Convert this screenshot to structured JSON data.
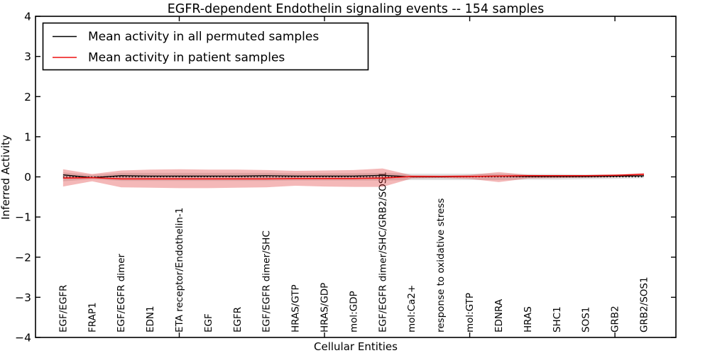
{
  "figure": {
    "title": "EGFR-dependent Endothelin signaling events -- 154 samples",
    "xlabel": "Cellular Entities",
    "ylabel": "Inferred Activity"
  },
  "legend": {
    "items": [
      {
        "label": "Mean activity in all permuted samples",
        "color": "#000000"
      },
      {
        "label": "Mean activity in patient samples",
        "color": "#ee1111"
      }
    ]
  },
  "chart_data": {
    "type": "line",
    "title": "EGFR-dependent Endothelin signaling events -- 154 samples",
    "xlabel": "Cellular Entities",
    "ylabel": "Inferred Activity",
    "ylim": [
      -4,
      4
    ],
    "ytick_values": [
      -4,
      -3,
      -2,
      -1,
      0,
      1,
      2,
      3,
      4
    ],
    "ytick_labels": [
      "−4",
      "−3",
      "−2",
      "−1",
      "0",
      "1",
      "2",
      "3",
      "4"
    ],
    "xtick_indices": [
      4,
      9,
      14,
      19
    ],
    "grid": false,
    "legend_position": "upper left",
    "categories": [
      "EGF/EGFR",
      "FRAP1",
      "EGF/EGFR dimer",
      "EDN1",
      "ETA receptor/Endothelin-1",
      "EGF",
      "EGFR",
      "EGF/EGFR dimer/SHC",
      "HRAS/GTP",
      "HRAS/GDP",
      "mol:GDP",
      "EGF/EGFR dimer/SHC/GRB2/SOS1",
      "mol:Ca2+",
      "response to oxidative stress",
      "mol:GTP",
      "EDNRA",
      "HRAS",
      "SHC1",
      "SOS1",
      "GRB2",
      "GRB2/SOS1"
    ],
    "series": [
      {
        "name": "Mean activity in all permuted samples",
        "color": "#000000",
        "style": "solid",
        "width": 1.3,
        "values": [
          0.05,
          -0.02,
          0.03,
          0.02,
          0.02,
          0.02,
          0.02,
          0.03,
          0.02,
          0.02,
          0.02,
          0.04,
          0.0,
          0.0,
          0.01,
          0.02,
          0.01,
          0.01,
          0.01,
          0.02,
          0.025
        ]
      },
      {
        "name": "Mean activity in patient samples",
        "color": "#ee1111",
        "style": "solid",
        "width": 1.6,
        "values": [
          -0.03,
          -0.02,
          -0.05,
          -0.05,
          -0.05,
          -0.05,
          -0.05,
          -0.05,
          -0.04,
          -0.04,
          -0.04,
          -0.03,
          0.01,
          0.01,
          0.01,
          0.02,
          0.03,
          0.03,
          0.03,
          0.04,
          0.06
        ]
      }
    ],
    "bands": [
      {
        "name": "permuted-samples-std-band",
        "color": "#999999",
        "alpha": 0.3,
        "upper": [
          0.11,
          0.05,
          0.1,
          0.1,
          0.1,
          0.1,
          0.1,
          0.1,
          0.09,
          0.09,
          0.09,
          0.1,
          0.08,
          0.08,
          0.08,
          0.08,
          0.07,
          0.07,
          0.06,
          0.06,
          0.05
        ],
        "lower": [
          -0.11,
          -0.06,
          -0.1,
          -0.1,
          -0.1,
          -0.1,
          -0.1,
          -0.1,
          -0.09,
          -0.09,
          -0.09,
          -0.09,
          -0.08,
          -0.08,
          -0.08,
          -0.08,
          -0.07,
          -0.07,
          -0.06,
          -0.05,
          -0.03
        ]
      },
      {
        "name": "patient-samples-std-band",
        "color": "#dd2222",
        "alpha": 0.32,
        "upper": [
          0.19,
          0.07,
          0.16,
          0.18,
          0.19,
          0.18,
          0.18,
          0.17,
          0.15,
          0.16,
          0.17,
          0.21,
          0.04,
          0.03,
          0.05,
          0.12,
          0.05,
          0.04,
          0.04,
          0.05,
          0.1
        ],
        "lower": [
          -0.24,
          -0.11,
          -0.26,
          -0.27,
          -0.28,
          -0.28,
          -0.27,
          -0.26,
          -0.22,
          -0.24,
          -0.25,
          -0.25,
          -0.04,
          -0.03,
          -0.05,
          -0.13,
          -0.04,
          -0.03,
          -0.02,
          -0.01,
          0.02
        ]
      }
    ],
    "zero_line": {
      "y": 0,
      "style": "dotted",
      "color": "#000000"
    }
  }
}
